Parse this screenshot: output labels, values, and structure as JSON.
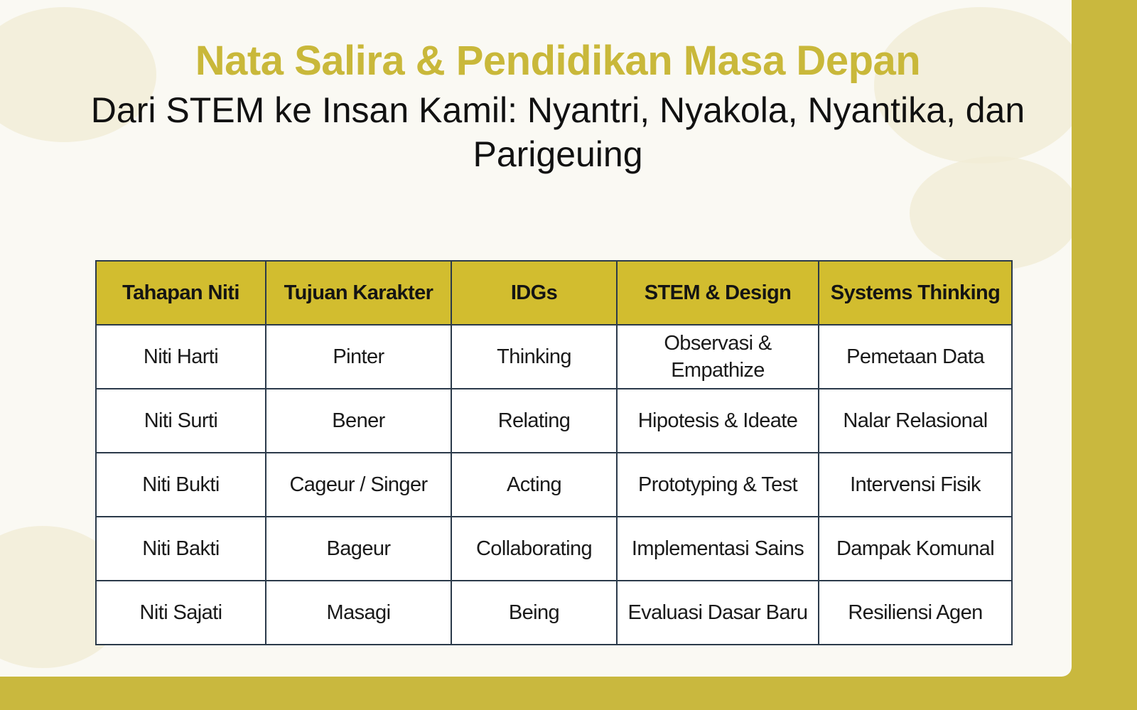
{
  "title": "Nata Salira & Pendidikan Masa Depan",
  "subtitle": "Dari STEM ke Insan Kamil: Nyantri, Nyakola, Nyantika, dan Parigeuing",
  "colors": {
    "accent": "#c9b83a",
    "header_fill": "#d2bd2f",
    "border": "#2b3a4a",
    "background": "#faf9f3"
  },
  "table": {
    "headers": [
      "Tahapan Niti",
      "Tujuan Karakter",
      "IDGs",
      "STEM & Design",
      "Systems Thinking"
    ],
    "rows": [
      [
        "Niti Harti",
        "Pinter",
        "Thinking",
        "Observasi & Empathize",
        "Pemetaan Data"
      ],
      [
        "Niti Surti",
        "Bener",
        "Relating",
        "Hipotesis & Ideate",
        "Nalar Relasional"
      ],
      [
        "Niti Bukti",
        "Cageur / Singer",
        "Acting",
        "Prototyping & Test",
        "Intervensi Fisik"
      ],
      [
        "Niti Bakti",
        "Bageur",
        "Collaborating",
        "Implementasi Sains",
        "Dampak Komunal"
      ],
      [
        "Niti Sajati",
        "Masagi",
        "Being",
        "Evaluasi Dasar Baru",
        "Resiliensi Agen"
      ]
    ]
  }
}
